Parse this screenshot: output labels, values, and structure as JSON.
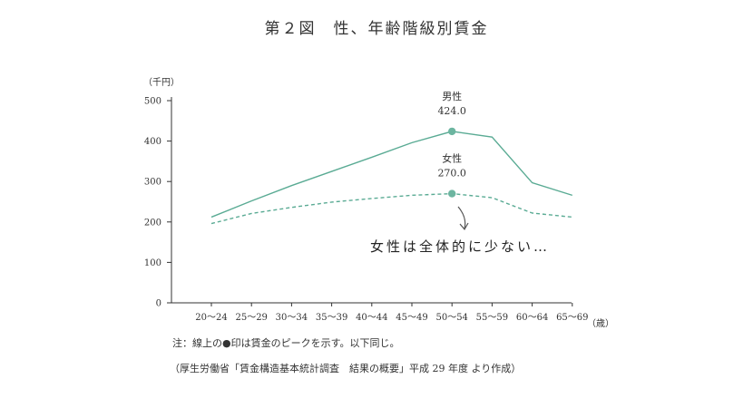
{
  "chart_data": {
    "type": "line",
    "title": "第２図　性、年齢階級別賃金",
    "ylabel": "（千円）",
    "xlabel": "（歳）",
    "ylim": [
      0,
      500
    ],
    "yticks": [
      0,
      100,
      200,
      300,
      400,
      500
    ],
    "categories": [
      "20～24",
      "25～29",
      "30～34",
      "35～39",
      "40～44",
      "45～49",
      "50～54",
      "55～59",
      "60～64",
      "65～69"
    ],
    "series": [
      {
        "name": "男性",
        "style": "solid",
        "color": "#5aab94",
        "values": [
          212,
          252,
          290,
          325,
          360,
          396,
          424.0,
          410,
          297,
          266
        ]
      },
      {
        "name": "女性",
        "style": "dashed",
        "color": "#5aab94",
        "values": [
          196,
          221,
          236,
          249,
          258,
          266,
          270.0,
          260,
          222,
          212
        ]
      }
    ],
    "peaks": [
      {
        "series": "男性",
        "category": "50～54",
        "value": 424.0,
        "label": "424.0"
      },
      {
        "series": "女性",
        "category": "50～54",
        "value": 270.0,
        "label": "270.0"
      }
    ],
    "annotation": "女性は全体的に少ない…",
    "note": "注：線上の●印は賃金のピークを示す。以下同じ。",
    "source": "（厚生労働省「賃金構造基本統計調査　結果の概要」平成 29 年度 より作成）",
    "grid": false,
    "marker_color": "#6cb5a0",
    "axis_color": "#333333"
  }
}
